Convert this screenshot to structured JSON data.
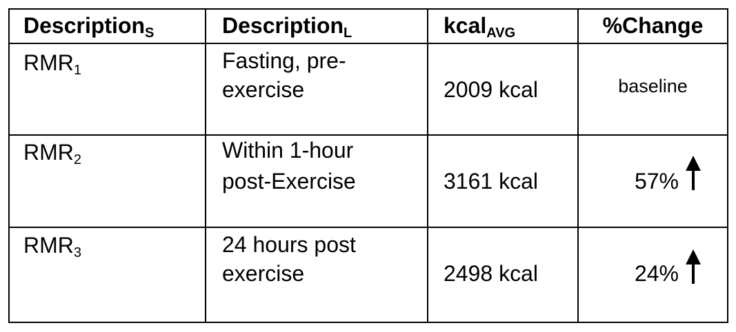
{
  "table": {
    "header": [
      {
        "text": "Description",
        "sub": "S"
      },
      {
        "text": "Description",
        "sub": "L"
      },
      {
        "text": "kcal",
        "sub": "AVG"
      },
      {
        "text": "%Change"
      }
    ],
    "rows": [
      {
        "label": "RMR",
        "sub": "1",
        "description": [
          "Fasting, pre-",
          "exercise"
        ],
        "kcal": "2009 kcal",
        "change": "baseline"
      },
      {
        "label": "RMR",
        "sub": "2",
        "description": [
          "Within 1-hour",
          "post-Exercise"
        ],
        "kcal": "3161 kcal",
        "change": "57%"
      },
      {
        "label": "RMR",
        "sub": "3",
        "description": [
          "24 hours post",
          "exercise"
        ],
        "kcal": "2498 kcal",
        "change": "24%"
      }
    ]
  }
}
